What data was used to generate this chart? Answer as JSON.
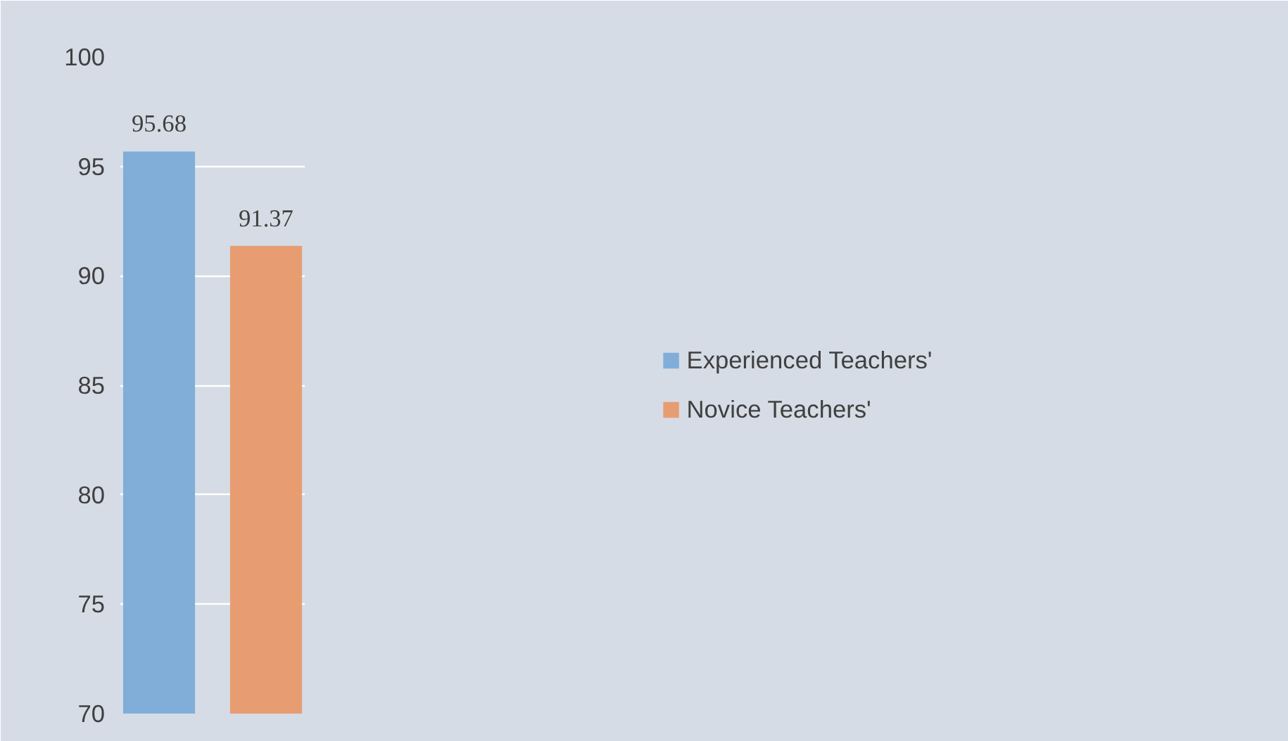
{
  "chart_data": {
    "type": "bar",
    "categories": [
      null
    ],
    "series": [
      {
        "name": "Experienced Teachers'",
        "color": "#80aed9",
        "values": [
          95.68
        ]
      },
      {
        "name": "Novice Teachers'",
        "color": "#e8996a",
        "values": [
          91.37
        ]
      }
    ],
    "ylim": [
      70,
      100
    ],
    "yticks": [
      70,
      75,
      80,
      85,
      90,
      95,
      100
    ],
    "grid": "y",
    "legend": "right",
    "data_labels": true
  }
}
